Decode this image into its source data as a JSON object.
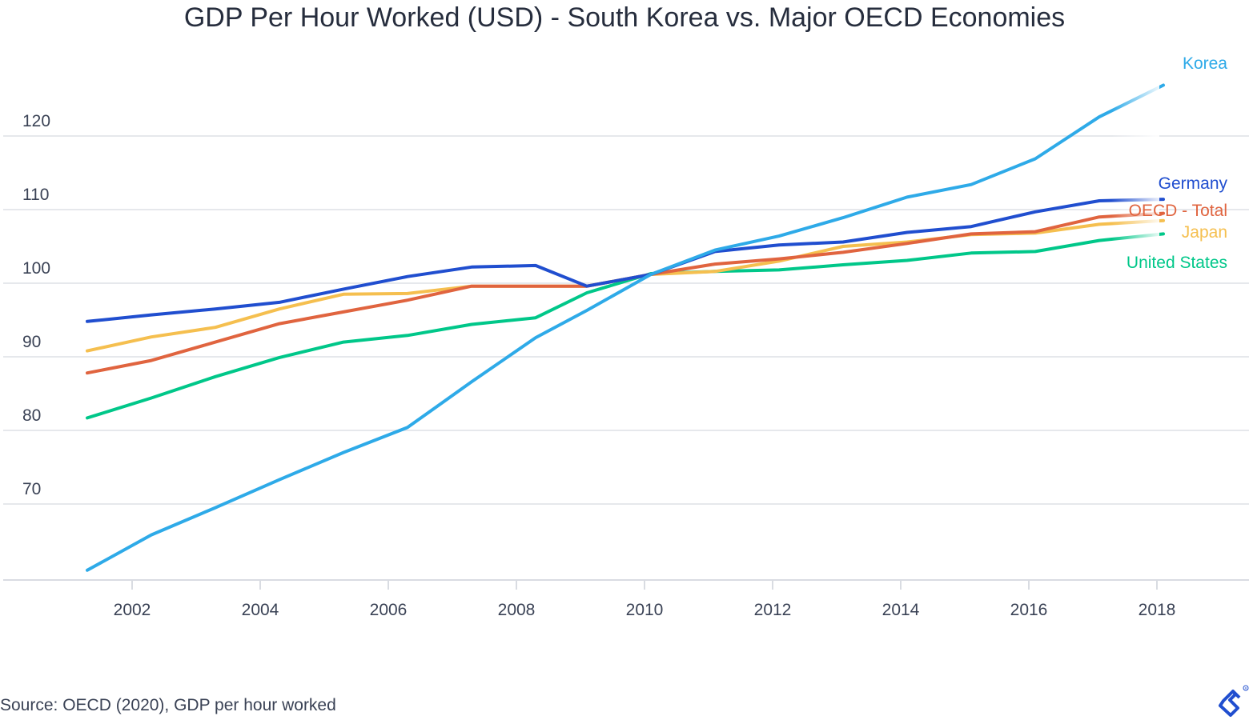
{
  "chart_data": {
    "type": "line",
    "title": "GDP Per Hour Worked (USD) - South Korea vs. Major OECD Economies",
    "x": [
      2001.3,
      2002.3,
      2003.3,
      2004.3,
      2005.3,
      2006.3,
      2007.3,
      2008.3,
      2009.1,
      2010.1,
      2011.1,
      2012.1,
      2013.1,
      2014.1,
      2015.1,
      2016.1,
      2017.1,
      2018.1
    ],
    "xticks": [
      2002,
      2004,
      2006,
      2008,
      2010,
      2012,
      2014,
      2016,
      2018
    ],
    "xtick_labels": [
      "2002",
      "2004",
      "2006",
      "2008",
      "2010",
      "2012",
      "2014",
      "2016",
      "2018"
    ],
    "xlim": [
      2000,
      2019.5
    ],
    "yticks": [
      70,
      80,
      90,
      100,
      110,
      120
    ],
    "ytick_labels": [
      "70",
      "80",
      "90",
      "100",
      "110",
      "120"
    ],
    "ylim": [
      59,
      131
    ],
    "grid": "horizontal",
    "xlabel": "",
    "ylabel": "",
    "series": [
      {
        "name": "Korea",
        "color": "#2eaae8",
        "values": [
          61.0,
          65.8,
          69.5,
          73.3,
          77.0,
          80.4,
          86.6,
          92.6,
          96.3,
          101.2,
          104.5,
          106.4,
          108.9,
          111.7,
          113.4,
          116.9,
          122.6,
          126.9
        ]
      },
      {
        "name": "Germany",
        "color": "#204ecf",
        "values": [
          94.8,
          95.7,
          96.5,
          97.4,
          99.2,
          100.9,
          102.2,
          102.4,
          99.6,
          101.2,
          104.3,
          105.2,
          105.6,
          106.9,
          107.7,
          109.7,
          111.2,
          111.4
        ]
      },
      {
        "name": "OECD - Total",
        "color": "#e0643f",
        "values": [
          87.8,
          89.5,
          92.0,
          94.5,
          96.1,
          97.7,
          99.6,
          99.6,
          99.6,
          101.2,
          102.6,
          103.3,
          104.2,
          105.4,
          106.7,
          107.0,
          109.0,
          109.5
        ]
      },
      {
        "name": "Japan",
        "color": "#f5bf4f",
        "values": [
          90.8,
          92.7,
          94.0,
          96.5,
          98.5,
          98.6,
          99.6,
          99.6,
          99.6,
          101.2,
          101.6,
          103.0,
          105.0,
          105.6,
          106.6,
          106.8,
          108.0,
          108.5
        ]
      },
      {
        "name": "United States",
        "color": "#00c789",
        "values": [
          81.7,
          84.4,
          87.3,
          89.9,
          92.0,
          92.9,
          94.4,
          95.3,
          98.7,
          101.3,
          101.6,
          101.8,
          102.5,
          103.1,
          104.1,
          104.3,
          105.8,
          106.7
        ]
      }
    ]
  },
  "source_note": "Source: OECD (2020), GDP per hour worked"
}
